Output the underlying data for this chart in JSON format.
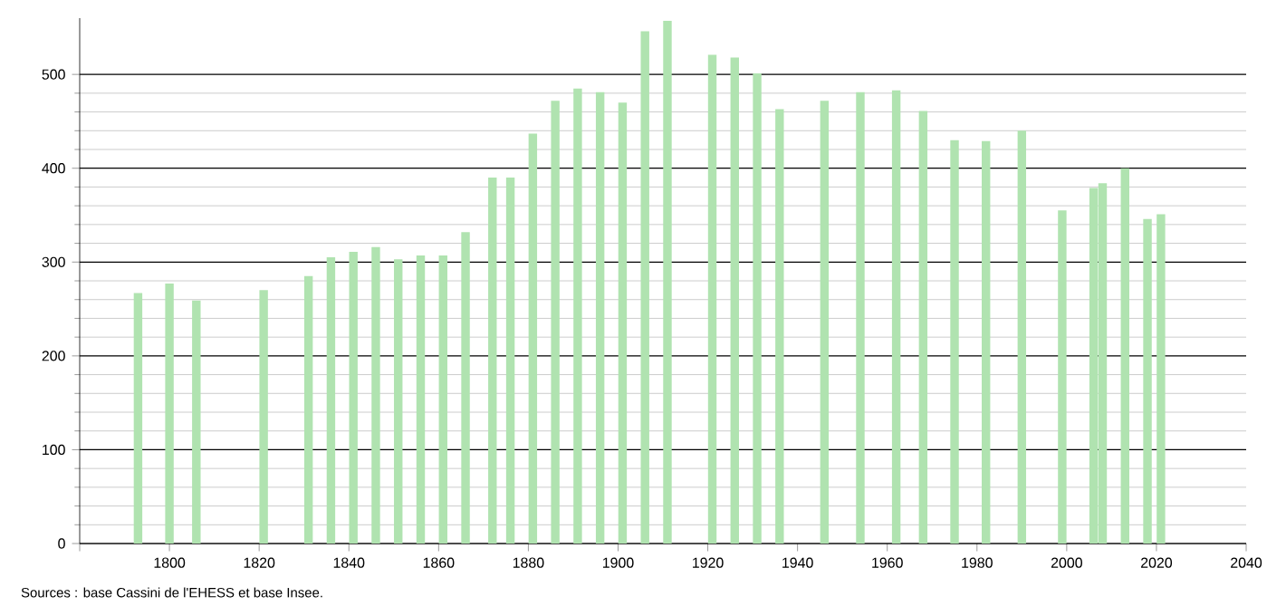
{
  "chart_data": {
    "type": "bar",
    "x": [
      1793,
      1800,
      1806,
      1821,
      1831,
      1836,
      1841,
      1846,
      1851,
      1856,
      1861,
      1866,
      1872,
      1876,
      1881,
      1886,
      1891,
      1896,
      1901,
      1906,
      1911,
      1921,
      1926,
      1931,
      1936,
      1946,
      1954,
      1962,
      1968,
      1975,
      1982,
      1990,
      1999,
      2006,
      2008,
      2013,
      2018,
      2021
    ],
    "values": [
      267,
      277,
      259,
      270,
      285,
      305,
      311,
      316,
      303,
      307,
      307,
      332,
      390,
      390,
      437,
      472,
      485,
      481,
      470,
      546,
      557,
      521,
      518,
      501,
      463,
      472,
      481,
      483,
      461,
      430,
      429,
      440,
      355,
      379,
      384,
      400,
      346,
      351
    ],
    "color": "#b0e3b0",
    "xlim": [
      1780,
      2040
    ],
    "xticks": [
      {
        "value": 1780,
        "label": null
      },
      1800,
      1820,
      1840,
      1860,
      1880,
      1900,
      1920,
      1940,
      1960,
      1980,
      2000,
      2020,
      2040
    ],
    "ylim": [
      0,
      560
    ],
    "yticks": [
      0,
      100,
      200,
      300,
      400,
      500
    ],
    "grid": "y",
    "annotations": [
      "Sources : base Cassini de l'EHESS et base Insee."
    ]
  }
}
